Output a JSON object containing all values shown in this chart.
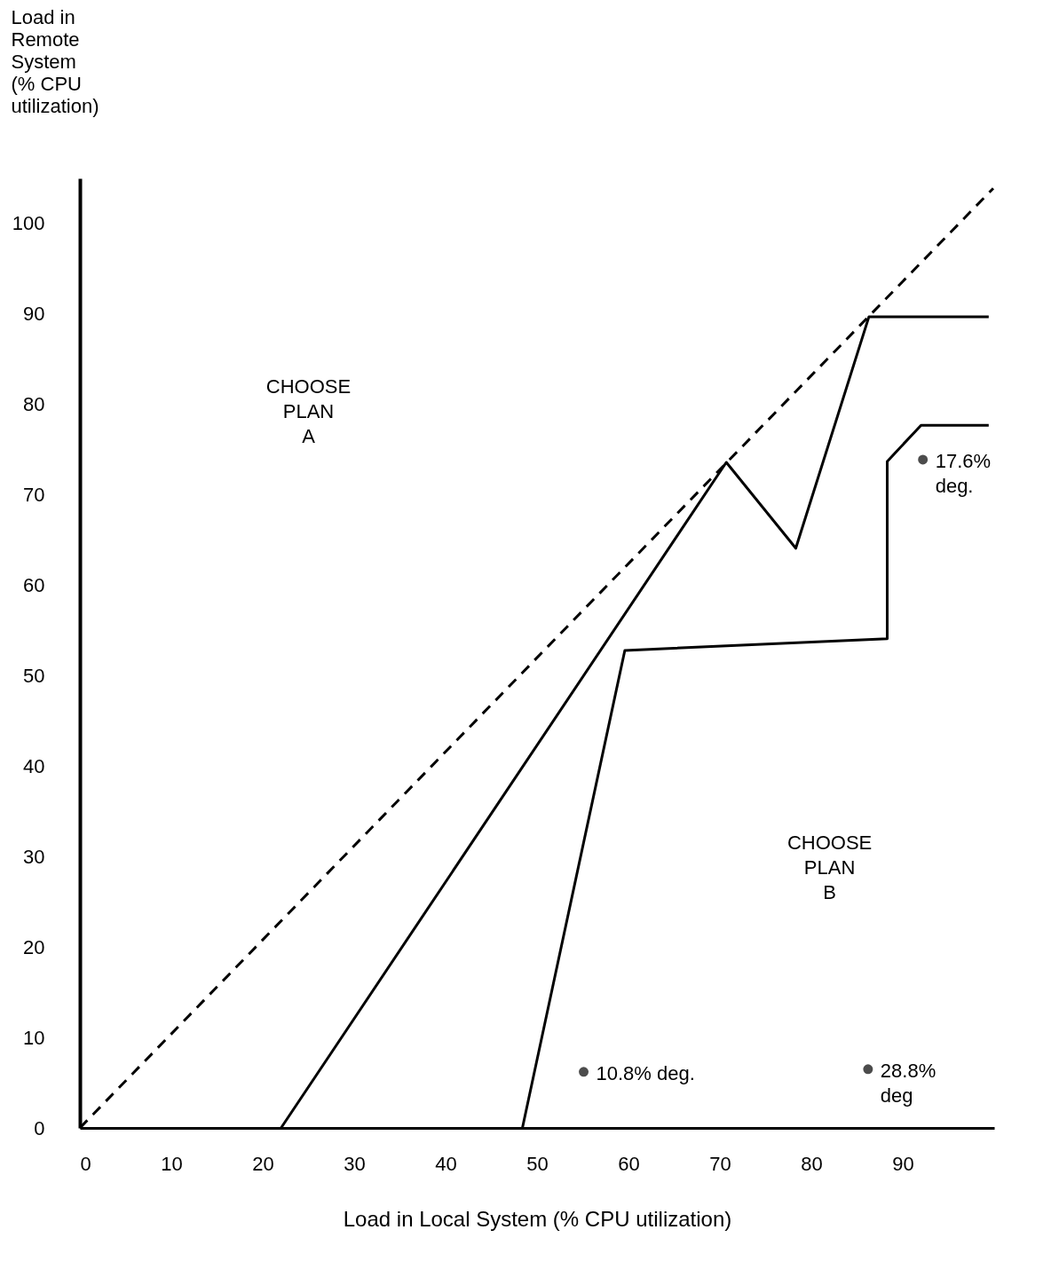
{
  "chart_data": {
    "type": "line",
    "xlabel": "Load in Local System (% CPU utilization)",
    "ylabel": "Load in\nRemote\nSystem\n(% CPU\nutilization)",
    "xlim": [
      0,
      100
    ],
    "xticks": [
      0,
      10,
      20,
      30,
      40,
      50,
      60,
      70,
      80,
      90
    ],
    "ylim": [
      0,
      105
    ],
    "yticks": [
      0,
      10,
      20,
      30,
      40,
      50,
      60,
      70,
      80,
      90,
      100
    ],
    "grid": false,
    "series": [
      {
        "line_style": "dashed",
        "color": "#000000",
        "x": [
          0,
          99.9
        ],
        "values": [
          0,
          103.9
        ]
      },
      {
        "line_style": "solid",
        "color": "#000000",
        "x": [
          22,
          70.7,
          78.3,
          86.3,
          99.4
        ],
        "values": [
          0,
          73.6,
          64.1,
          89.7,
          89.7
        ]
      },
      {
        "line_style": "solid",
        "color": "#000000",
        "x": [
          99.4,
          92,
          88.3,
          88.3,
          59.6,
          48.4
        ],
        "values": [
          77.7,
          77.7,
          73.7,
          54.1,
          52.8,
          0
        ]
      },
      {
        "type": "scatter",
        "marker": "circle",
        "color": "#000000",
        "x": [
          55.1,
          86.2,
          92.2
        ],
        "values": [
          6.2,
          6.5,
          73.9
        ]
      }
    ],
    "annotations": [
      "CHOOSE\nPLAN\nA",
      "CHOOSE\nPLAN\nB",
      {
        "text": "10.8% deg.",
        "x": 55.1,
        "y": 6.2
      },
      {
        "text": "28.8%\ndeg",
        "x": 86.2,
        "y": 6.5
      },
      {
        "text": "17.6%\ndeg.",
        "x": 92.2,
        "y": 73.9
      }
    ]
  }
}
